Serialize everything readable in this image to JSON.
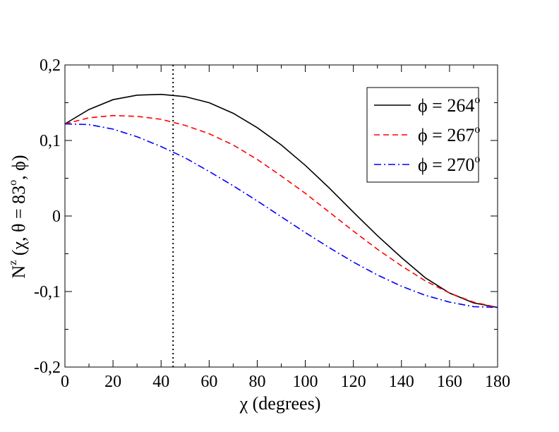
{
  "chart_data": {
    "type": "line",
    "title": "",
    "xlabel": "χ (degrees)",
    "ylabel": {
      "prefix": "N",
      "sup": "z",
      "mid": " (χ, θ = 83",
      "sup2": "o",
      "suffix": ", ϕ)"
    },
    "xlim": [
      0,
      180
    ],
    "ylim": [
      -0.2,
      0.2
    ],
    "x_ticks": [
      0,
      20,
      40,
      60,
      80,
      100,
      120,
      140,
      160,
      180
    ],
    "x_tick_labels": [
      "0",
      "20",
      "40",
      "60",
      "80",
      "100",
      "120",
      "140",
      "160",
      "180"
    ],
    "y_ticks": [
      -0.2,
      -0.1,
      0,
      0.1,
      0.2
    ],
    "y_tick_labels": [
      "-0,2",
      "-0,1",
      "0",
      "0,1",
      "0,2"
    ],
    "grid": false,
    "legend_position": "top-right",
    "vertical_reference_line": {
      "x": 45,
      "style": "dotted",
      "color": "#000000"
    },
    "x": [
      0,
      10,
      20,
      30,
      40,
      50,
      60,
      70,
      80,
      90,
      100,
      110,
      120,
      130,
      140,
      150,
      160,
      170,
      180
    ],
    "series": [
      {
        "name": "264",
        "legend_prefix": "ϕ = ",
        "legend_value": "264",
        "legend_sup": "o",
        "color": "#000000",
        "style": "solid",
        "values": [
          0.122,
          0.141,
          0.154,
          0.16,
          0.161,
          0.158,
          0.15,
          0.136,
          0.117,
          0.094,
          0.067,
          0.037,
          0.005,
          -0.026,
          -0.055,
          -0.082,
          -0.102,
          -0.115,
          -0.121
        ]
      },
      {
        "name": "267",
        "legend_prefix": "ϕ = ",
        "legend_value": "267",
        "legend_sup": "o",
        "color": "#ff0000",
        "style": "dashed",
        "values": [
          0.122,
          0.13,
          0.133,
          0.132,
          0.128,
          0.12,
          0.109,
          0.094,
          0.075,
          0.053,
          0.03,
          0.005,
          -0.02,
          -0.044,
          -0.066,
          -0.086,
          -0.102,
          -0.114,
          -0.121
        ]
      },
      {
        "name": "270",
        "legend_prefix": "ϕ = ",
        "legend_value": "270",
        "legend_sup": "o",
        "color": "#0000ff",
        "style": "dash-dot",
        "values": [
          0.122,
          0.121,
          0.115,
          0.105,
          0.092,
          0.077,
          0.059,
          0.04,
          0.02,
          -0.001,
          -0.022,
          -0.042,
          -0.061,
          -0.078,
          -0.093,
          -0.105,
          -0.114,
          -0.12,
          -0.121
        ]
      }
    ]
  }
}
